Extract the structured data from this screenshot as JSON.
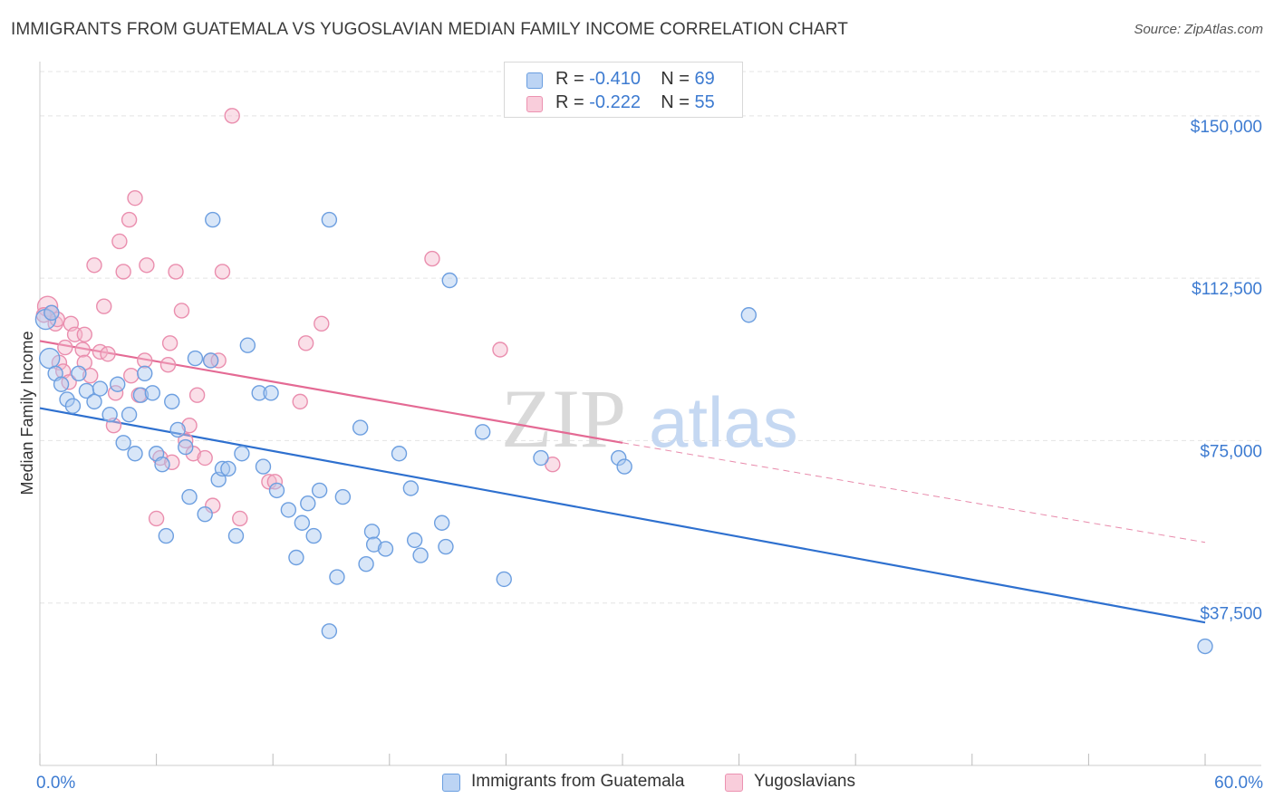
{
  "title": "IMMIGRANTS FROM GUATEMALA VS YUGOSLAVIAN MEDIAN FAMILY INCOME CORRELATION CHART",
  "source": "Source: ZipAtlas.com",
  "watermark": {
    "part1": "ZIP",
    "part2": "atlas"
  },
  "colors": {
    "blue": "#3d7bd1",
    "blue_fill": "#a9c8f0",
    "pink": "#e8709a",
    "pink_fill": "#f5b7cc"
  },
  "legend_top": {
    "rows": [
      {
        "r_label": "R = ",
        "r_value": "-0.410",
        "n_label": "N = ",
        "n_value": "69"
      },
      {
        "r_label": "R = ",
        "r_value": "-0.222",
        "n_label": "N = ",
        "n_value": "55"
      }
    ]
  },
  "legend_bottom": [
    "Immigrants from Guatemala",
    "Yugoslavians"
  ],
  "chart_data": {
    "type": "scatter",
    "xlabel": "",
    "ylabel": "Median Family Income",
    "xlim": [
      0,
      60
    ],
    "ylim": [
      0,
      160000
    ],
    "x_tick_labels": [
      "0.0%",
      "60.0%"
    ],
    "y_ticks": [
      37500,
      75000,
      112500,
      150000
    ],
    "y_tick_labels": [
      "$37,500",
      "$75,000",
      "$112,500",
      "$150,000"
    ],
    "grid": true,
    "series": [
      {
        "name": "Immigrants from Guatemala",
        "color": "#3d7bd1",
        "trend": {
          "x0": 0,
          "y0": 82500,
          "x1": 60,
          "y1": 33000
        },
        "points": [
          [
            0.3,
            103000
          ],
          [
            0.5,
            94000
          ],
          [
            0.8,
            90500
          ],
          [
            1.1,
            88000
          ],
          [
            1.4,
            84500
          ],
          [
            1.7,
            83000
          ],
          [
            2.0,
            90500
          ],
          [
            2.4,
            86500
          ],
          [
            2.8,
            84000
          ],
          [
            3.1,
            87000
          ],
          [
            3.6,
            81000
          ],
          [
            4.0,
            88000
          ],
          [
            4.3,
            74500
          ],
          [
            4.6,
            81000
          ],
          [
            4.9,
            72000
          ],
          [
            5.2,
            85500
          ],
          [
            5.4,
            90500
          ],
          [
            5.8,
            86000
          ],
          [
            6.0,
            72000
          ],
          [
            6.3,
            69500
          ],
          [
            6.5,
            53000
          ],
          [
            6.8,
            84000
          ],
          [
            7.1,
            77500
          ],
          [
            7.5,
            73500
          ],
          [
            7.7,
            62000
          ],
          [
            8.0,
            94000
          ],
          [
            8.5,
            58000
          ],
          [
            8.8,
            93500
          ],
          [
            8.9,
            126000
          ],
          [
            9.2,
            66000
          ],
          [
            9.4,
            68500
          ],
          [
            9.7,
            68500
          ],
          [
            10.1,
            53000
          ],
          [
            10.4,
            72000
          ],
          [
            10.7,
            97000
          ],
          [
            11.3,
            86000
          ],
          [
            11.5,
            69000
          ],
          [
            11.9,
            86000
          ],
          [
            12.2,
            63500
          ],
          [
            12.8,
            59000
          ],
          [
            13.2,
            48000
          ],
          [
            13.5,
            56000
          ],
          [
            13.8,
            60500
          ],
          [
            14.1,
            53000
          ],
          [
            14.4,
            63500
          ],
          [
            14.9,
            31000
          ],
          [
            14.9,
            126000
          ],
          [
            15.3,
            43500
          ],
          [
            15.6,
            62000
          ],
          [
            16.5,
            78000
          ],
          [
            16.8,
            46500
          ],
          [
            17.1,
            54000
          ],
          [
            17.2,
            51000
          ],
          [
            17.8,
            50000
          ],
          [
            18.5,
            72000
          ],
          [
            19.1,
            64000
          ],
          [
            19.3,
            52000
          ],
          [
            19.6,
            48500
          ],
          [
            20.7,
            56000
          ],
          [
            20.9,
            50500
          ],
          [
            21.1,
            112000
          ],
          [
            22.8,
            77000
          ],
          [
            23.9,
            43000
          ],
          [
            25.8,
            71000
          ],
          [
            29.8,
            71000
          ],
          [
            30.1,
            69000
          ],
          [
            36.5,
            104000
          ],
          [
            60.0,
            27500
          ],
          [
            0.6,
            104500
          ]
        ]
      },
      {
        "name": "Yugoslavians",
        "color": "#e8709a",
        "trend": {
          "x0": 0,
          "y0": 98000,
          "x1": 30,
          "y1": 74500,
          "dash_x1": 60,
          "dash_y1": 51500
        },
        "points": [
          [
            0.4,
            106000
          ],
          [
            0.6,
            104500
          ],
          [
            0.8,
            102000
          ],
          [
            1.0,
            93000
          ],
          [
            1.2,
            91000
          ],
          [
            1.5,
            88500
          ],
          [
            1.6,
            102000
          ],
          [
            1.8,
            99500
          ],
          [
            2.2,
            96000
          ],
          [
            2.3,
            93000
          ],
          [
            2.3,
            99500
          ],
          [
            2.6,
            90000
          ],
          [
            2.8,
            115500
          ],
          [
            3.1,
            95500
          ],
          [
            3.3,
            106000
          ],
          [
            3.5,
            95000
          ],
          [
            3.8,
            78500
          ],
          [
            3.9,
            86000
          ],
          [
            4.1,
            121000
          ],
          [
            4.3,
            114000
          ],
          [
            4.6,
            126000
          ],
          [
            4.7,
            90000
          ],
          [
            4.9,
            131000
          ],
          [
            5.1,
            85500
          ],
          [
            5.4,
            93500
          ],
          [
            5.5,
            115500
          ],
          [
            6.0,
            57000
          ],
          [
            6.2,
            71000
          ],
          [
            6.6,
            92500
          ],
          [
            6.7,
            97500
          ],
          [
            6.8,
            70000
          ],
          [
            7.0,
            114000
          ],
          [
            7.3,
            105000
          ],
          [
            7.5,
            75000
          ],
          [
            7.7,
            78500
          ],
          [
            7.9,
            72000
          ],
          [
            8.1,
            85500
          ],
          [
            8.5,
            71000
          ],
          [
            8.8,
            93500
          ],
          [
            8.9,
            60000
          ],
          [
            9.2,
            93500
          ],
          [
            9.4,
            114000
          ],
          [
            9.9,
            150000
          ],
          [
            10.3,
            57000
          ],
          [
            11.8,
            65500
          ],
          [
            12.1,
            65500
          ],
          [
            13.4,
            84000
          ],
          [
            13.7,
            97500
          ],
          [
            14.5,
            102000
          ],
          [
            20.2,
            117000
          ],
          [
            23.7,
            96000
          ],
          [
            26.4,
            69500
          ],
          [
            0.2,
            104000
          ],
          [
            0.9,
            103000
          ],
          [
            1.3,
            96500
          ]
        ]
      }
    ]
  }
}
